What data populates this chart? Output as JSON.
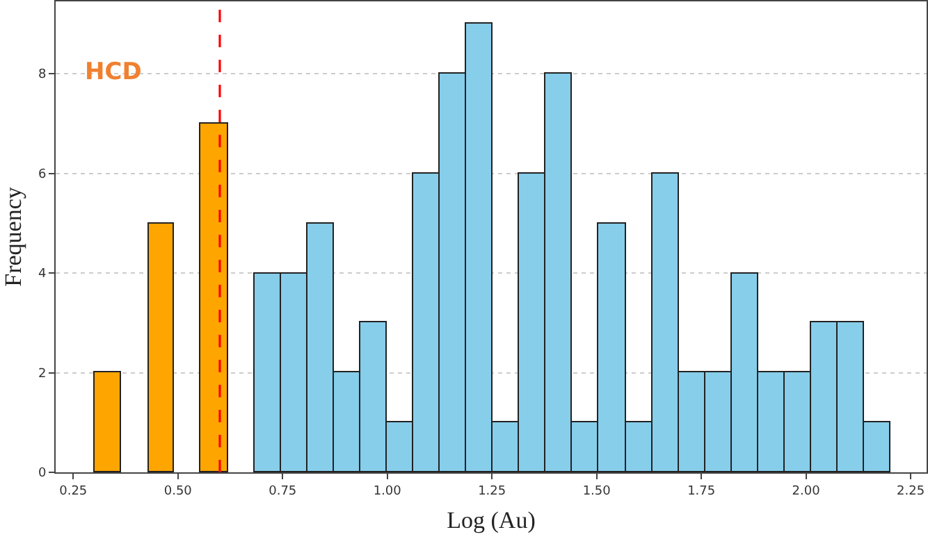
{
  "chart_data": {
    "type": "histogram",
    "xlabel": "Log (Au)",
    "ylabel": "Frequency",
    "bins": [
      0.302,
      0.365,
      0.429,
      0.492,
      0.555,
      0.619,
      0.682,
      0.745,
      0.809,
      0.872,
      0.935,
      0.999,
      1.062,
      1.125,
      1.189,
      1.252,
      1.315,
      1.379,
      1.442,
      1.505,
      1.569,
      1.632,
      1.695,
      1.759,
      1.822,
      1.885,
      1.949,
      2.012,
      2.075,
      2.139,
      2.202
    ],
    "values": [
      2,
      0,
      5,
      0,
      7,
      0,
      4,
      4,
      5,
      2,
      3,
      1,
      6,
      8,
      9,
      1,
      6,
      8,
      1,
      5,
      1,
      6,
      2,
      2,
      4,
      2,
      2,
      3,
      3,
      1
    ],
    "colors": [
      "#ffa500",
      "#ffa500",
      "#ffa500",
      "#ffa500",
      "#ffa500",
      "#ffa500",
      "#87ceeb",
      "#87ceeb",
      "#87ceeb",
      "#87ceeb",
      "#87ceeb",
      "#87ceeb",
      "#87ceeb",
      "#87ceeb",
      "#87ceeb",
      "#87ceeb",
      "#87ceeb",
      "#87ceeb",
      "#87ceeb",
      "#87ceeb",
      "#87ceeb",
      "#87ceeb",
      "#87ceeb",
      "#87ceeb",
      "#87ceeb",
      "#87ceeb",
      "#87ceeb",
      "#87ceeb",
      "#87ceeb",
      "#87ceeb"
    ],
    "xlim": [
      0.208,
      2.288
    ],
    "xticks": [
      {
        "value": 0.25,
        "label": "0.25"
      },
      {
        "value": 0.5,
        "label": "0.50"
      },
      {
        "value": 0.75,
        "label": "0.75"
      },
      {
        "value": 1,
        "label": "1.00"
      },
      {
        "value": 1.25,
        "label": "1.25"
      },
      {
        "value": 1.5,
        "label": "1.50"
      },
      {
        "value": 1.75,
        "label": "1.75"
      },
      {
        "value": 2,
        "label": "2.00"
      },
      {
        "value": 2.25,
        "label": "2.25"
      }
    ],
    "ylim": [
      0,
      9.45
    ],
    "yticks": [
      0,
      2,
      4,
      6,
      8
    ],
    "grid": "y",
    "ref_lines": [
      {
        "axis": "x",
        "value": 0.6,
        "color": "#ff0000",
        "line_style": "dashed"
      }
    ],
    "annotations": [
      "HCD"
    ]
  }
}
